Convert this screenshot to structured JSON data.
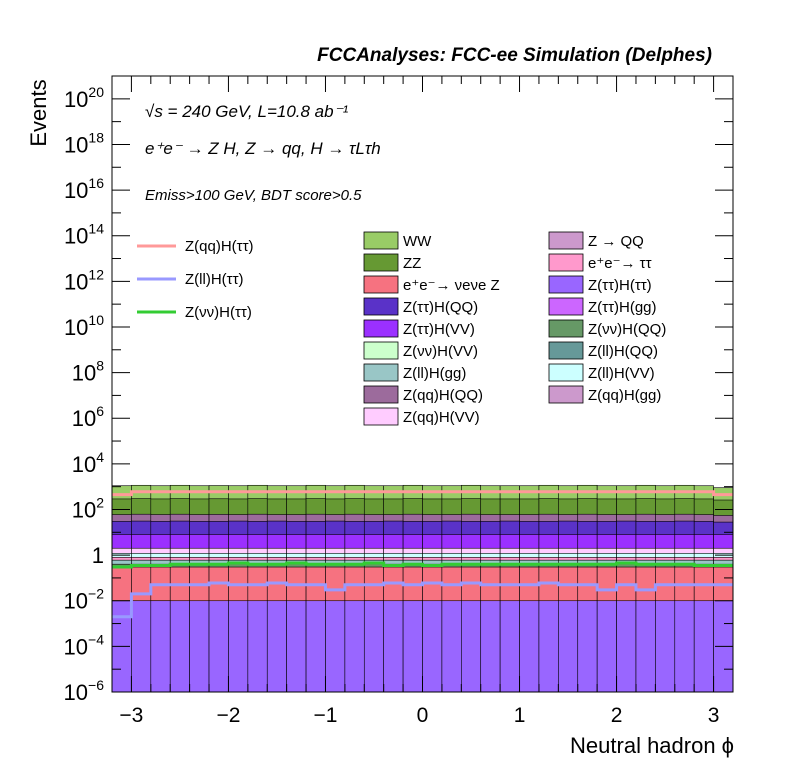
{
  "chart_data": {
    "type": "area",
    "title": "FCCAnalyses: FCC-ee Simulation (Delphes)",
    "xlabel": "Neutral hadron ϕ",
    "ylabel": "Events",
    "x_range": [
      -3.2,
      3.2
    ],
    "y_range": [
      1e-06,
      1e+21
    ],
    "y_scale": "log",
    "grid": false,
    "x_ticks": [
      "−3",
      "−2",
      "−1",
      "0",
      "1",
      "2",
      "3"
    ],
    "y_ticks": [
      {
        "base": "10",
        "exp": "−6"
      },
      {
        "base": "10",
        "exp": "−4"
      },
      {
        "base": "10",
        "exp": "−2"
      },
      {
        "base": "1",
        "exp": ""
      },
      {
        "base": "10",
        "exp": "2"
      },
      {
        "base": "10",
        "exp": "4"
      },
      {
        "base": "10",
        "exp": "6"
      },
      {
        "base": "10",
        "exp": "8"
      },
      {
        "base": "10",
        "exp": "10"
      },
      {
        "base": "10",
        "exp": "12"
      },
      {
        "base": "10",
        "exp": "14"
      },
      {
        "base": "10",
        "exp": "16"
      },
      {
        "base": "10",
        "exp": "18"
      },
      {
        "base": "10",
        "exp": "20"
      }
    ],
    "annotations": {
      "energy": "√s = 240 GeV, L=10.8 ab⁻¹",
      "process": "e⁺e⁻ → Z H, Z → qq, H → τLτh",
      "selection": "Emiss>100 GeV, BDT score>0.5"
    },
    "legend_position": "top",
    "bins": 32,
    "bin_centers": [
      -3.1,
      -2.9,
      -2.7,
      -2.5,
      -2.3,
      -2.1,
      -1.9,
      -1.7,
      -1.5,
      -1.3,
      -1.1,
      -0.9,
      -0.7,
      -0.5,
      -0.3,
      -0.1,
      0.1,
      0.3,
      0.5,
      0.7,
      0.9,
      1.1,
      1.3,
      1.5,
      1.7,
      1.9,
      2.1,
      2.3,
      2.5,
      2.7,
      2.9,
      3.1
    ],
    "stack_order_bottom_to_top": [
      "Z(ττ)H(ττ)",
      "Z → QQ",
      "e⁺e⁻→ νeνe Z",
      "Z(νν)H(QQ)",
      "Z(ll)H(gg)",
      "e⁺e⁻→ ττ",
      "Z(ll)H(VV)",
      "Z(qq)H(VV)",
      "Z(qq)H(gg)",
      "Z(ττ)H(VV)",
      "Z(νν)H(VV)",
      "Z(ll)H(QQ)",
      "Z(ττ)H(QQ)",
      "Z(ττ)H(gg)",
      "Z(qq)H(QQ)",
      "ZZ",
      "WW"
    ],
    "series": [
      {
        "name": "WW",
        "type": "stacked",
        "color": "#99cc66",
        "level": [
          1100,
          1150,
          1100,
          1150,
          1100,
          1120,
          1100,
          1150,
          1100,
          1100,
          1150,
          1100,
          1150,
          1100,
          1100,
          1150,
          1100,
          1100,
          1150,
          1100,
          1100,
          1100,
          1150,
          1100,
          1150,
          1100,
          1100,
          1150,
          1100,
          1150,
          1100,
          900
        ]
      },
      {
        "name": "ZZ",
        "type": "stacked",
        "color": "#669933",
        "level": [
          290,
          300,
          290,
          300,
          290,
          295,
          290,
          300,
          290,
          290,
          300,
          290,
          300,
          290,
          290,
          300,
          290,
          290,
          300,
          290,
          290,
          290,
          300,
          290,
          300,
          290,
          290,
          300,
          290,
          300,
          290,
          260
        ]
      },
      {
        "name": "e⁺e⁻→ νeνe Z",
        "type": "stacked",
        "color": "#f67280",
        "level": [
          0.3,
          0.3,
          0.3,
          0.3,
          0.3,
          0.3,
          0.3,
          0.3,
          0.3,
          0.3,
          0.3,
          0.3,
          0.3,
          0.3,
          0.3,
          0.3,
          0.3,
          0.3,
          0.3,
          0.3,
          0.3,
          0.3,
          0.3,
          0.3,
          0.3,
          0.3,
          0.3,
          0.3,
          0.3,
          0.3,
          0.3,
          0.3
        ]
      },
      {
        "name": "Z(ττ)H(QQ)",
        "type": "stacked",
        "color": "#5a32c8",
        "level": [
          30,
          31,
          30,
          31,
          30,
          30,
          31,
          30,
          31,
          30,
          30,
          31,
          30,
          30,
          31,
          30,
          30,
          31,
          30,
          30,
          31,
          30,
          30,
          31,
          30,
          30,
          31,
          30,
          30,
          31,
          30,
          28
        ]
      },
      {
        "name": "Z(ττ)H(VV)",
        "type": "stacked",
        "color": "#9b30ff",
        "level": [
          8,
          8,
          8,
          8,
          8,
          8,
          8,
          8,
          8,
          8,
          8,
          8,
          8,
          8,
          8,
          8,
          8,
          8,
          8,
          8,
          8,
          8,
          8,
          8,
          8,
          8,
          8,
          8,
          8,
          8,
          8,
          8
        ]
      },
      {
        "name": "Z(νν)H(VV)",
        "type": "stacked",
        "color": "#ccffcc",
        "level": [
          4,
          4,
          4,
          4,
          4,
          4,
          4,
          4,
          4,
          4,
          4,
          4,
          4,
          4,
          4,
          4,
          4,
          4,
          4,
          4,
          4,
          4,
          4,
          4,
          4,
          4,
          4,
          4,
          4,
          4,
          4,
          4
        ]
      },
      {
        "name": "Z(ll)H(gg)",
        "type": "stacked",
        "color": "#99c6c6",
        "level": [
          0.6,
          0.6,
          0.6,
          0.6,
          0.6,
          0.6,
          0.6,
          0.6,
          0.6,
          0.6,
          0.6,
          0.6,
          0.6,
          0.6,
          0.6,
          0.6,
          0.6,
          0.6,
          0.6,
          0.6,
          0.6,
          0.6,
          0.6,
          0.6,
          0.6,
          0.6,
          0.6,
          0.6,
          0.6,
          0.6,
          0.6,
          0.6
        ]
      },
      {
        "name": "Z(qq)H(QQ)",
        "type": "stacked",
        "color": "#9c6b9c",
        "level": [
          60,
          62,
          60,
          62,
          60,
          61,
          60,
          62,
          60,
          60,
          62,
          60,
          62,
          60,
          60,
          62,
          60,
          60,
          62,
          60,
          60,
          60,
          62,
          60,
          62,
          60,
          60,
          62,
          60,
          62,
          60,
          55
        ]
      },
      {
        "name": "Z(qq)H(VV)",
        "type": "stacked",
        "color": "#ffccff",
        "level": [
          2,
          2,
          2,
          2,
          2,
          2,
          2,
          2,
          2,
          2,
          2,
          2,
          2,
          2,
          2,
          2,
          2,
          2,
          2,
          2,
          2,
          2,
          2,
          2,
          2,
          2,
          2,
          2,
          2,
          2,
          2,
          2
        ]
      },
      {
        "name": "Z → QQ",
        "type": "stacked",
        "color": "#cc99cc",
        "level": [
          0.01,
          1e-06,
          0.01,
          1e-06,
          1e-06,
          1e-06,
          1e-06,
          1e-06,
          1e-06,
          1e-06,
          1e-06,
          1e-06,
          1e-06,
          0.01,
          1e-06,
          0.01,
          1e-06,
          1e-06,
          1e-06,
          1e-06,
          1e-06,
          1e-06,
          1e-06,
          1e-06,
          0.01,
          1e-06,
          1e-06,
          1e-06,
          1e-06,
          1e-06,
          1e-06,
          1e-06
        ]
      },
      {
        "name": "e⁺e⁻→ ττ",
        "type": "stacked",
        "color": "#ff99cc",
        "level": [
          0.8,
          0.8,
          0.8,
          0.8,
          0.8,
          0.8,
          0.8,
          0.8,
          0.8,
          0.8,
          0.8,
          0.8,
          0.8,
          0.8,
          0.8,
          0.8,
          0.8,
          0.8,
          0.8,
          0.8,
          0.8,
          0.8,
          0.8,
          0.8,
          0.8,
          0.8,
          0.8,
          0.8,
          0.8,
          0.8,
          0.8,
          0.8
        ]
      },
      {
        "name": "Z(ττ)H(ττ)",
        "type": "stacked",
        "color": "#9966ff",
        "level": [
          0.01,
          0.01,
          0.01,
          0.01,
          0.01,
          0.01,
          0.01,
          0.01,
          0.01,
          0.01,
          0.01,
          0.01,
          0.01,
          0.01,
          0.01,
          0.01,
          0.01,
          0.01,
          0.01,
          0.01,
          0.01,
          0.01,
          0.01,
          0.01,
          0.01,
          0.01,
          0.01,
          0.01,
          0.01,
          0.01,
          0.01,
          0.01
        ]
      },
      {
        "name": "Z(ττ)H(gg)",
        "type": "stacked",
        "color": "#cc66ff",
        "level": [
          15,
          15,
          15,
          15,
          15,
          15,
          15,
          15,
          15,
          15,
          15,
          15,
          15,
          15,
          15,
          15,
          15,
          15,
          15,
          15,
          15,
          15,
          15,
          15,
          15,
          15,
          15,
          15,
          15,
          15,
          15,
          15
        ]
      },
      {
        "name": "Z(νν)H(QQ)",
        "type": "stacked",
        "color": "#669966",
        "level": [
          0.4,
          0.4,
          0.4,
          0.4,
          0.4,
          0.4,
          0.4,
          0.4,
          0.4,
          0.4,
          0.4,
          0.4,
          0.4,
          0.4,
          0.4,
          0.4,
          0.4,
          0.4,
          0.4,
          0.4,
          0.4,
          0.4,
          0.4,
          0.4,
          0.4,
          0.4,
          0.4,
          0.4,
          0.4,
          0.4,
          0.4,
          0.4
        ]
      },
      {
        "name": "Z(ll)H(QQ)",
        "type": "stacked",
        "color": "#669999",
        "level": [
          5,
          5,
          5,
          5,
          5,
          5,
          5,
          5,
          5,
          5,
          5,
          5,
          5,
          5,
          5,
          5,
          5,
          5,
          5,
          5,
          5,
          5,
          5,
          5,
          5,
          5,
          5,
          5,
          5,
          5,
          5,
          5
        ]
      },
      {
        "name": "Z(ll)H(VV)",
        "type": "stacked",
        "color": "#ccffff",
        "level": [
          1.2,
          1.2,
          1.2,
          1.2,
          1.2,
          1.2,
          1.2,
          1.2,
          1.2,
          1.2,
          1.2,
          1.2,
          1.2,
          1.2,
          1.2,
          1.2,
          1.2,
          1.2,
          1.2,
          1.2,
          1.2,
          1.2,
          1.2,
          1.2,
          1.2,
          1.2,
          1.2,
          1.2,
          1.2,
          1.2,
          1.2,
          1.2
        ]
      },
      {
        "name": "Z(qq)H(gg)",
        "type": "stacked",
        "color": "#cc99cc",
        "level": [
          1.8,
          1.8,
          1.8,
          1.8,
          1.8,
          1.8,
          1.8,
          1.8,
          1.8,
          1.8,
          1.8,
          1.8,
          1.8,
          1.8,
          1.8,
          1.8,
          1.8,
          1.8,
          1.8,
          1.8,
          1.8,
          1.8,
          1.8,
          1.8,
          1.8,
          1.8,
          1.8,
          1.8,
          1.8,
          1.8,
          1.8,
          1.8
        ]
      },
      {
        "name": "Z(qq)H(ττ)",
        "type": "line",
        "color": "#ff9999",
        "values": [
          450,
          600,
          600,
          600,
          600,
          600,
          600,
          600,
          600,
          600,
          600,
          600,
          600,
          600,
          600,
          600,
          600,
          600,
          600,
          600,
          600,
          600,
          600,
          600,
          600,
          600,
          600,
          600,
          600,
          600,
          600,
          450
        ]
      },
      {
        "name": "Z(ll)H(ττ)",
        "type": "line",
        "color": "#9999ff",
        "values": [
          0.002,
          0.02,
          0.05,
          0.05,
          0.05,
          0.06,
          0.05,
          0.05,
          0.06,
          0.05,
          0.05,
          0.03,
          0.05,
          0.05,
          0.06,
          0.05,
          0.06,
          0.05,
          0.06,
          0.05,
          0.05,
          0.05,
          0.06,
          0.05,
          0.05,
          0.03,
          0.05,
          0.03,
          0.05,
          0.05,
          0.05,
          0.05
        ]
      },
      {
        "name": "Z(νν)H(ττ)",
        "type": "line",
        "color": "#33cc33",
        "values": [
          0.3,
          0.35,
          0.35,
          0.4,
          0.4,
          0.4,
          0.45,
          0.4,
          0.4,
          0.45,
          0.4,
          0.4,
          0.4,
          0.45,
          0.35,
          0.4,
          0.35,
          0.4,
          0.4,
          0.4,
          0.4,
          0.4,
          0.4,
          0.4,
          0.4,
          0.4,
          0.45,
          0.4,
          0.4,
          0.4,
          0.35,
          0.35
        ]
      }
    ],
    "legend": {
      "lines": [
        "Z(qq)H(ττ)",
        "Z(ll)H(ττ)",
        "Z(νν)H(ττ)"
      ],
      "col1": [
        "WW",
        "ZZ",
        "e⁺e⁻→ νeνe Z",
        "Z(ττ)H(QQ)",
        "Z(ττ)H(VV)",
        "Z(νν)H(VV)",
        "Z(ll)H(gg)",
        "Z(qq)H(QQ)",
        "Z(qq)H(VV)"
      ],
      "col2": [
        "Z → QQ",
        "e⁺e⁻→ ττ",
        "Z(ττ)H(ττ)",
        "Z(ττ)H(gg)",
        "Z(νν)H(QQ)",
        "Z(ll)H(QQ)",
        "Z(ll)H(VV)",
        "Z(qq)H(gg)"
      ]
    }
  }
}
